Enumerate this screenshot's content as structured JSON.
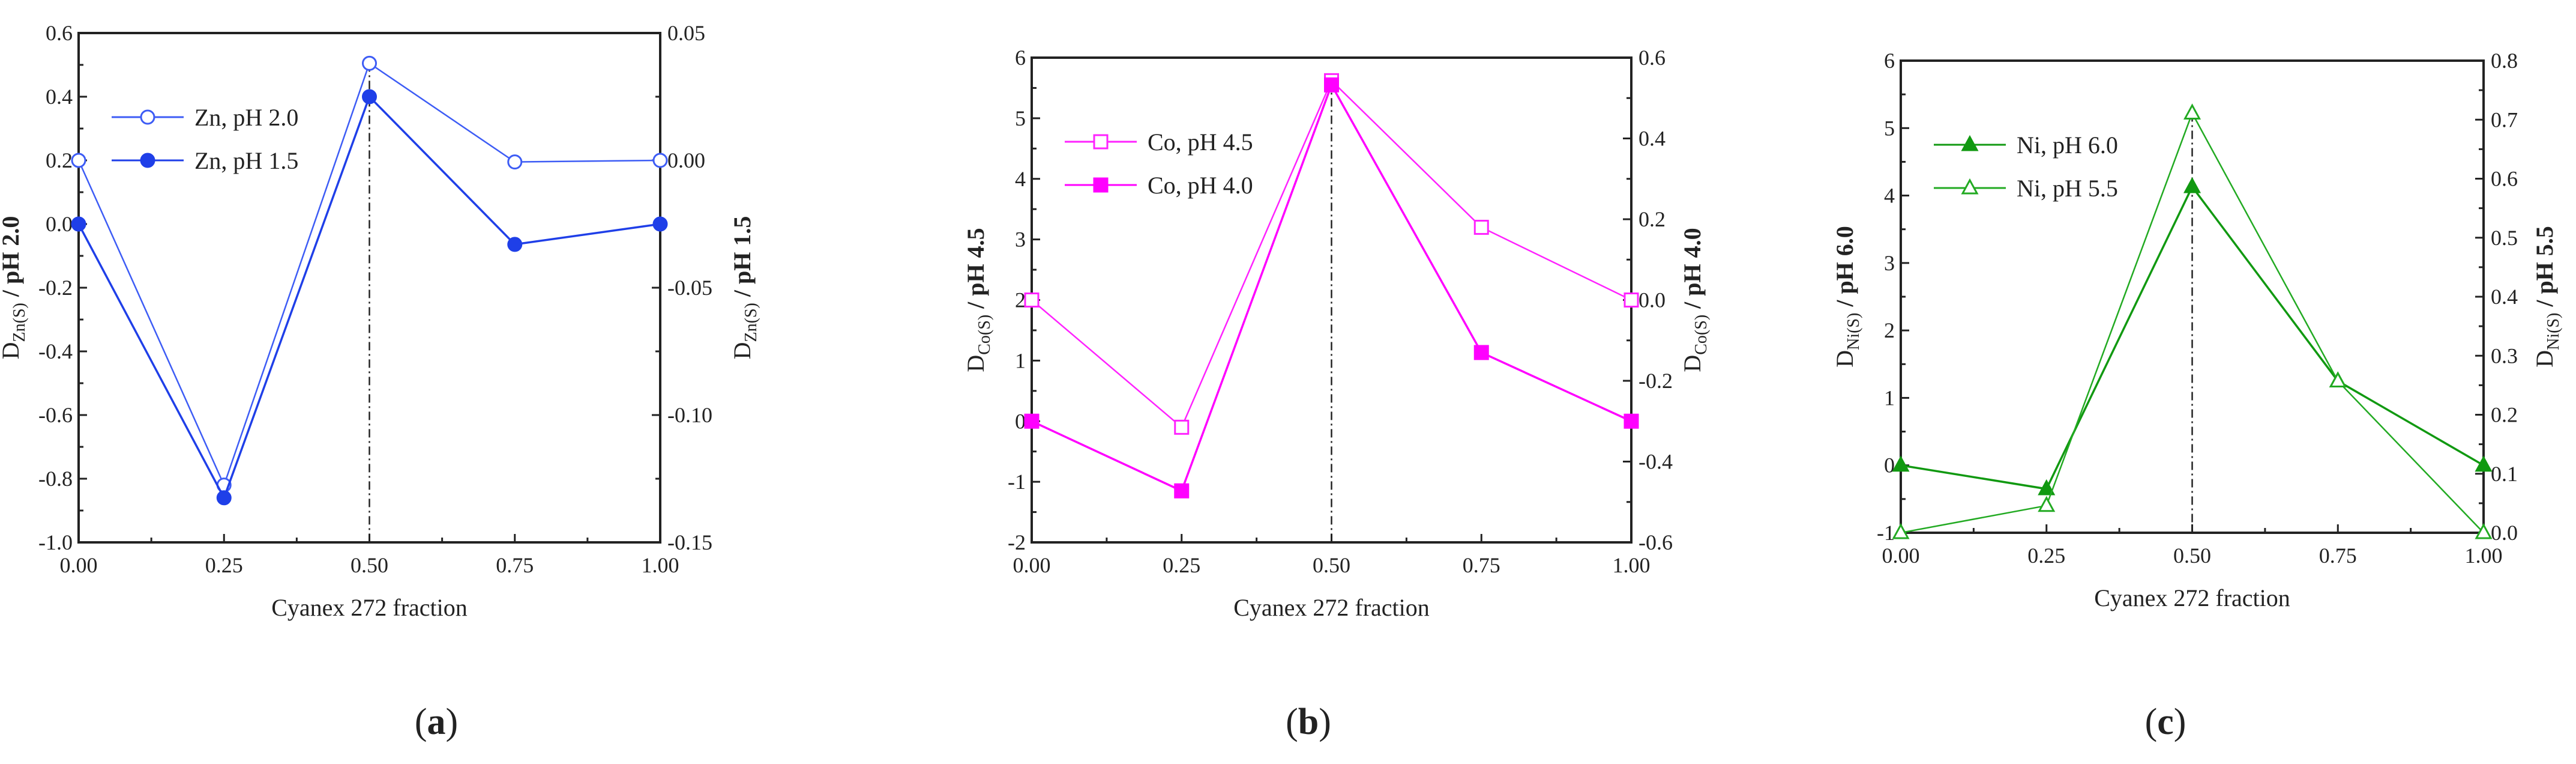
{
  "chart_data": [
    {
      "type": "line",
      "panel_label": "a",
      "xlabel": "Cyanex 272 fraction",
      "x": [
        0.0,
        0.25,
        0.5,
        0.75,
        1.0
      ],
      "xticks": [
        "0.00",
        "0.25",
        "0.50",
        "0.75",
        "1.00"
      ],
      "xlim": [
        0,
        1
      ],
      "left_axis": {
        "label_main": "D",
        "label_sub": "Zn(S)",
        "label_rest": " / pH 2.0",
        "ylim": [
          -1.0,
          0.6
        ],
        "ticks": [
          -1.0,
          -0.8,
          -0.6,
          -0.4,
          -0.2,
          0.0,
          0.2,
          0.4,
          0.6
        ],
        "tick_labels": [
          "-1.0",
          "-0.8",
          "-0.6",
          "-0.4",
          "-0.2",
          "0.0",
          "0.2",
          "0.4",
          "0.6"
        ]
      },
      "right_axis": {
        "label_main": "D",
        "label_sub": "Zn(S)",
        "label_rest": " / pH 1.5",
        "ylim": [
          -0.15,
          0.05
        ],
        "ticks": [
          -0.15,
          -0.1,
          -0.05,
          0.0,
          0.05
        ],
        "tick_labels": [
          "-0.15",
          "-0.10",
          "-0.05",
          "0.00",
          "0.05"
        ]
      },
      "vline_x": 0.5,
      "legend_placement": "top-left",
      "series": [
        {
          "name": "Zn, pH 2.0",
          "axis": "left",
          "marker": "circle",
          "filled": false,
          "color": "#3d5cf5",
          "values": [
            0.2,
            -0.82,
            0.505,
            0.195,
            0.2
          ]
        },
        {
          "name": "Zn, pH 1.5",
          "axis": "right",
          "marker": "circle",
          "filled": true,
          "color": "#1f3fe8",
          "values": [
            -0.025,
            -0.1325,
            0.025,
            -0.033,
            -0.025
          ]
        }
      ]
    },
    {
      "type": "line",
      "panel_label": "b",
      "xlabel": "Cyanex 272 fraction",
      "x": [
        0.0,
        0.25,
        0.5,
        0.75,
        1.0
      ],
      "xticks": [
        "0.00",
        "0.25",
        "0.50",
        "0.75",
        "1.00"
      ],
      "xlim": [
        0,
        1
      ],
      "left_axis": {
        "label_main": "D",
        "label_sub": "Co(S)",
        "label_rest": " / pH 4.5",
        "ylim": [
          -2,
          6
        ],
        "ticks": [
          -2,
          -1,
          0,
          1,
          2,
          3,
          4,
          5,
          6
        ],
        "tick_labels": [
          "-2",
          "-1",
          "0",
          "1",
          "2",
          "3",
          "4",
          "5",
          "6"
        ]
      },
      "right_axis": {
        "label_main": "D",
        "label_sub": "Co(S)",
        "label_rest": " / pH 4.0",
        "ylim": [
          -0.6,
          0.6
        ],
        "ticks": [
          -0.6,
          -0.4,
          -0.2,
          0.0,
          0.2,
          0.4,
          0.6
        ],
        "tick_labels": [
          "-0.6",
          "-0.4",
          "-0.2",
          "0.0",
          "0.2",
          "0.4",
          "0.6"
        ]
      },
      "vline_x": 0.5,
      "legend_placement": "top-left",
      "series": [
        {
          "name": "Co, pH 4.5",
          "axis": "left",
          "marker": "square",
          "filled": false,
          "color": "#ff22ff",
          "values": [
            2.0,
            -0.1,
            5.62,
            3.2,
            2.0
          ]
        },
        {
          "name": "Co, pH 4.0",
          "axis": "right",
          "marker": "square",
          "filled": true,
          "color": "#ff00ff",
          "values": [
            -0.3,
            -0.4725,
            0.5325,
            -0.13,
            -0.3
          ]
        }
      ]
    },
    {
      "type": "line",
      "panel_label": "c",
      "xlabel": "Cyanex 272 fraction",
      "x": [
        0.0,
        0.25,
        0.5,
        0.75,
        1.0
      ],
      "xticks": [
        "0.00",
        "0.25",
        "0.50",
        "0.75",
        "1.00"
      ],
      "xlim": [
        0,
        1
      ],
      "left_axis": {
        "label_main": "D",
        "label_sub": "Ni(S)",
        "label_rest": " / pH 6.0",
        "ylim": [
          -1,
          6
        ],
        "ticks": [
          -1,
          0,
          1,
          2,
          3,
          4,
          5,
          6
        ],
        "tick_labels": [
          "-1",
          "0",
          "1",
          "2",
          "3",
          "4",
          "5",
          "6"
        ]
      },
      "right_axis": {
        "label_main": "D",
        "label_sub": "Ni(S)",
        "label_rest": " / pH 5.5",
        "ylim": [
          0.0,
          0.8
        ],
        "ticks": [
          0.0,
          0.1,
          0.2,
          0.3,
          0.4,
          0.5,
          0.6,
          0.7,
          0.8
        ],
        "tick_labels": [
          "0.0",
          "0.1",
          "0.2",
          "0.3",
          "0.4",
          "0.5",
          "0.6",
          "0.7",
          "0.8"
        ]
      },
      "vline_x": 0.5,
      "legend_placement": "top-left",
      "series": [
        {
          "name": "Ni, pH 6.0",
          "axis": "left",
          "marker": "triangle",
          "filled": true,
          "color": "#119911",
          "values": [
            0.0,
            -0.35,
            4.13,
            1.25,
            0.0
          ]
        },
        {
          "name": "Ni, pH 5.5",
          "axis": "right",
          "marker": "triangle",
          "filled": false,
          "color": "#22aa22",
          "values": [
            0.0,
            0.046,
            0.711,
            0.257,
            0.0
          ]
        }
      ]
    }
  ]
}
